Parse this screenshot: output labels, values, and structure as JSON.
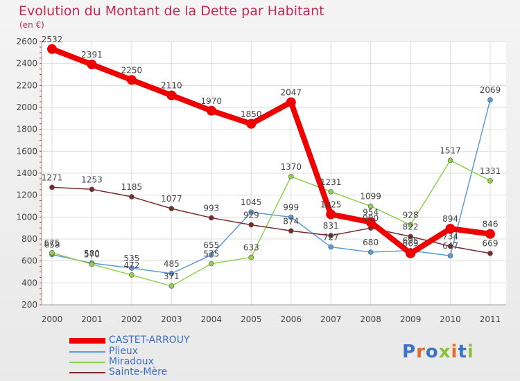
{
  "title": "Evolution du Montant de la Dette par Habitant",
  "unit": "(en €)",
  "chart_data": {
    "type": "line",
    "title": "Evolution du Montant de la Dette par Habitant",
    "ylabel": "(en €)",
    "xlabel": "",
    "x": [
      "2000",
      "2001",
      "2002",
      "2003",
      "2004",
      "2005",
      "2006",
      "2007",
      "2008",
      "2009",
      "2010",
      "2011"
    ],
    "ylim": [
      200,
      2600
    ],
    "yticks": [
      200,
      400,
      600,
      800,
      1000,
      1200,
      1400,
      1600,
      1800,
      2000,
      2200,
      2400,
      2600
    ],
    "grid": true,
    "legend_position": "bottom-left",
    "series": [
      {
        "name": "CASTET-ARROUY",
        "color": "#ee0000",
        "values": [
          2532,
          2391,
          2250,
          2110,
          1970,
          1850,
          2047,
          1025,
          954,
          669,
          894,
          846
        ]
      },
      {
        "name": "Plieux",
        "color": "#5b9bd5",
        "values": [
          658,
          580,
          535,
          485,
          655,
          1045,
          999,
          727,
          680,
          695,
          647,
          2069
        ]
      },
      {
        "name": "Miradoux",
        "color": "#8fd14f",
        "values": [
          675,
          570,
          472,
          371,
          575,
          633,
          1370,
          1231,
          1099,
          928,
          1517,
          1331
        ]
      },
      {
        "name": "Sainte-Mère",
        "color": "#7a2a2a",
        "values": [
          1271,
          1253,
          1185,
          1077,
          993,
          929,
          874,
          831,
          900,
          822,
          734,
          669
        ]
      }
    ]
  },
  "logo": {
    "text": "Proxiti",
    "colors": [
      "#3b73c8",
      "#e36c2a",
      "#3b73c8",
      "#8fbf3f",
      "#e36c2a",
      "#3b73c8",
      "#8fbf3f"
    ]
  }
}
